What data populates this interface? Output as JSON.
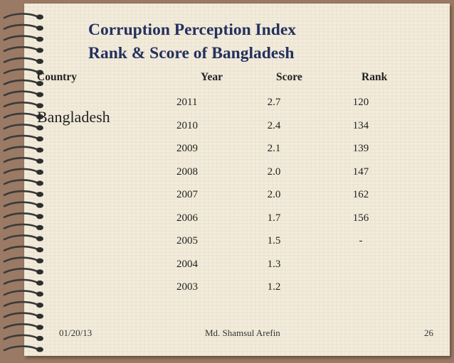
{
  "slide": {
    "title_line1": "Corruption Perception Index",
    "title_line2": "Rank & Score of Bangladesh",
    "headers": {
      "country": "Country",
      "year": "Year",
      "score": "Score",
      "rank": "Rank"
    },
    "country": "Bangladesh",
    "rows": [
      {
        "year": "2011",
        "score": "2.7",
        "rank": "120"
      },
      {
        "year": "2010",
        "score": "2.4",
        "rank": "134"
      },
      {
        "year": "2009",
        "score": "2.1",
        "rank": "139"
      },
      {
        "year": "2008",
        "score": "2.0",
        "rank": "147"
      },
      {
        "year": "2007",
        "score": "2.0",
        "rank": "162"
      },
      {
        "year": "2006",
        "score": "1.7",
        "rank": "156"
      },
      {
        "year": "2005",
        "score": "1.5",
        "rank": "-"
      },
      {
        "year": "2004",
        "score": "1.3",
        "rank": ""
      },
      {
        "year": "2003",
        "score": "1.2",
        "rank": ""
      }
    ],
    "footer": {
      "date": "01/20/13",
      "author": "Md. Shamsul Arefin",
      "page": "26"
    }
  }
}
